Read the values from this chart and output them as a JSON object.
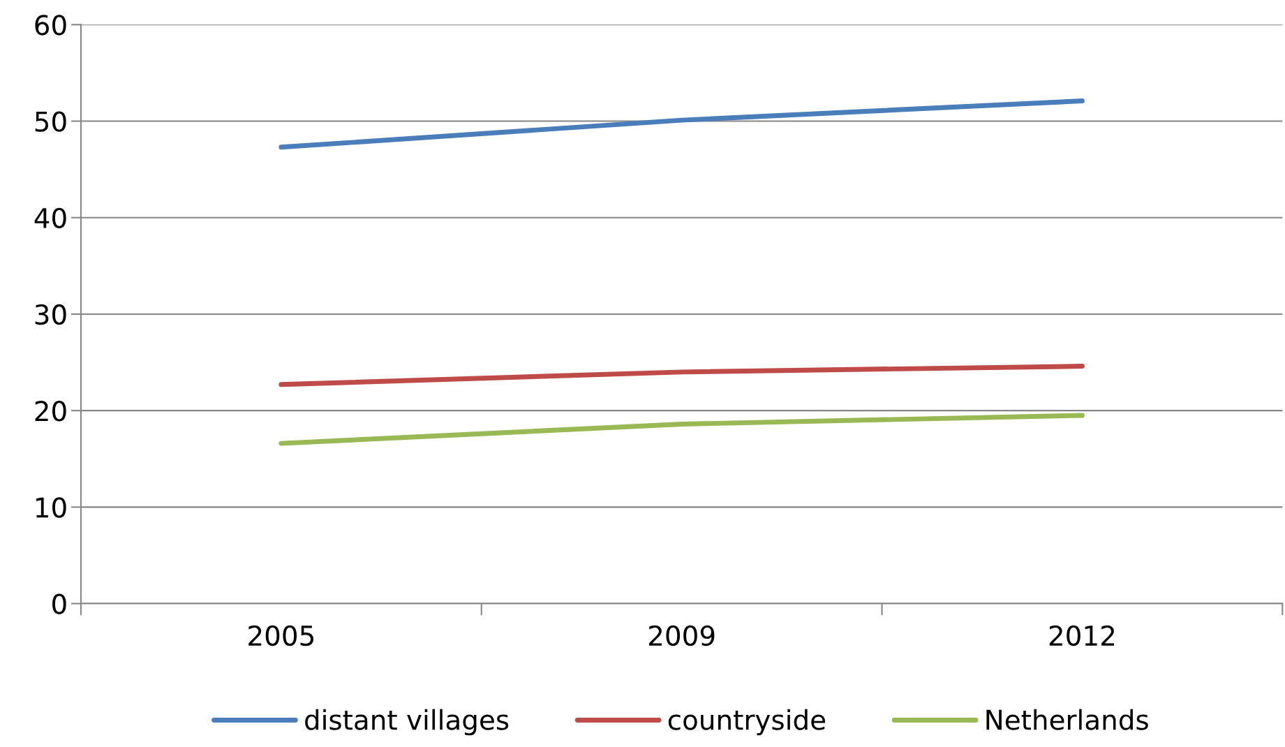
{
  "chart_data": {
    "type": "line",
    "categories": [
      "2005",
      "2009",
      "2012"
    ],
    "series": [
      {
        "name": "distant villages",
        "color": "#4a7ebb",
        "values": [
          47.3,
          50.1,
          52.1
        ]
      },
      {
        "name": "countryside",
        "color": "#be4b48",
        "values": [
          22.7,
          24.0,
          24.6
        ]
      },
      {
        "name": "Netherlands",
        "color": "#98b954",
        "values": [
          16.6,
          18.6,
          19.5
        ]
      }
    ],
    "ylim": [
      0,
      60
    ],
    "yticks": [
      0,
      10,
      20,
      30,
      40,
      50,
      60
    ],
    "grid": "y",
    "legend": "bottom",
    "marker": "none",
    "line_style": "solid"
  }
}
